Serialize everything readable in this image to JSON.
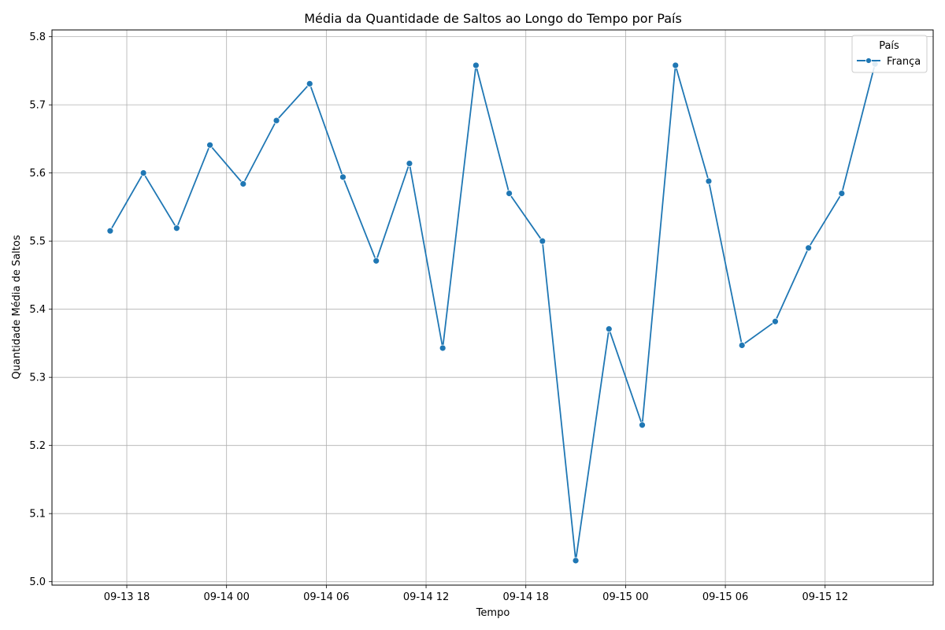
{
  "chart_data": {
    "type": "line",
    "title": "Média da Quantidade de Saltos ao Longo do Tempo por País",
    "xlabel": "Tempo",
    "ylabel": "Quantidade Média de Saltos",
    "x_ticks": [
      {
        "label": "09-13 18",
        "t": "2024-09-13T18:00"
      },
      {
        "label": "09-14 00",
        "t": "2024-09-14T00:00"
      },
      {
        "label": "09-14 06",
        "t": "2024-09-14T06:00"
      },
      {
        "label": "09-14 12",
        "t": "2024-09-14T12:00"
      },
      {
        "label": "09-14 18",
        "t": "2024-09-14T18:00"
      },
      {
        "label": "09-15 00",
        "t": "2024-09-15T00:00"
      },
      {
        "label": "09-15 06",
        "t": "2024-09-15T06:00"
      },
      {
        "label": "09-15 12",
        "t": "2024-09-15T12:00"
      }
    ],
    "y_ticks": [
      "5.0",
      "5.1",
      "5.2",
      "5.3",
      "5.4",
      "5.5",
      "5.6",
      "5.7",
      "5.8"
    ],
    "xlim": [
      "2024-09-13T13:30",
      "2024-09-15T18:30"
    ],
    "ylim": [
      4.995,
      5.81
    ],
    "grid": true,
    "legend": {
      "title": "País",
      "placement": "top-right"
    },
    "colors": {
      "series": "#1f77b4",
      "grid": "#b0b0b0"
    },
    "series": [
      {
        "name": "França",
        "x": [
          "2024-09-13T17:00",
          "2024-09-13T19:00",
          "2024-09-13T21:00",
          "2024-09-13T23:00",
          "2024-09-14T01:00",
          "2024-09-14T03:00",
          "2024-09-14T05:00",
          "2024-09-14T07:00",
          "2024-09-14T09:00",
          "2024-09-14T11:00",
          "2024-09-14T13:00",
          "2024-09-14T15:00",
          "2024-09-14T17:00",
          "2024-09-14T19:00",
          "2024-09-14T21:00",
          "2024-09-14T23:00",
          "2024-09-15T01:00",
          "2024-09-15T03:00",
          "2024-09-15T05:00",
          "2024-09-15T07:00",
          "2024-09-15T09:00",
          "2024-09-15T11:00",
          "2024-09-15T13:00",
          "2024-09-15T15:00"
        ],
        "values": [
          5.515,
          5.6,
          5.519,
          5.641,
          5.584,
          5.677,
          5.731,
          5.594,
          5.471,
          5.614,
          5.343,
          5.758,
          5.57,
          5.5,
          5.031,
          5.371,
          5.23,
          5.758,
          5.588,
          5.347,
          5.382,
          5.49,
          5.57,
          5.76
        ]
      }
    ]
  }
}
